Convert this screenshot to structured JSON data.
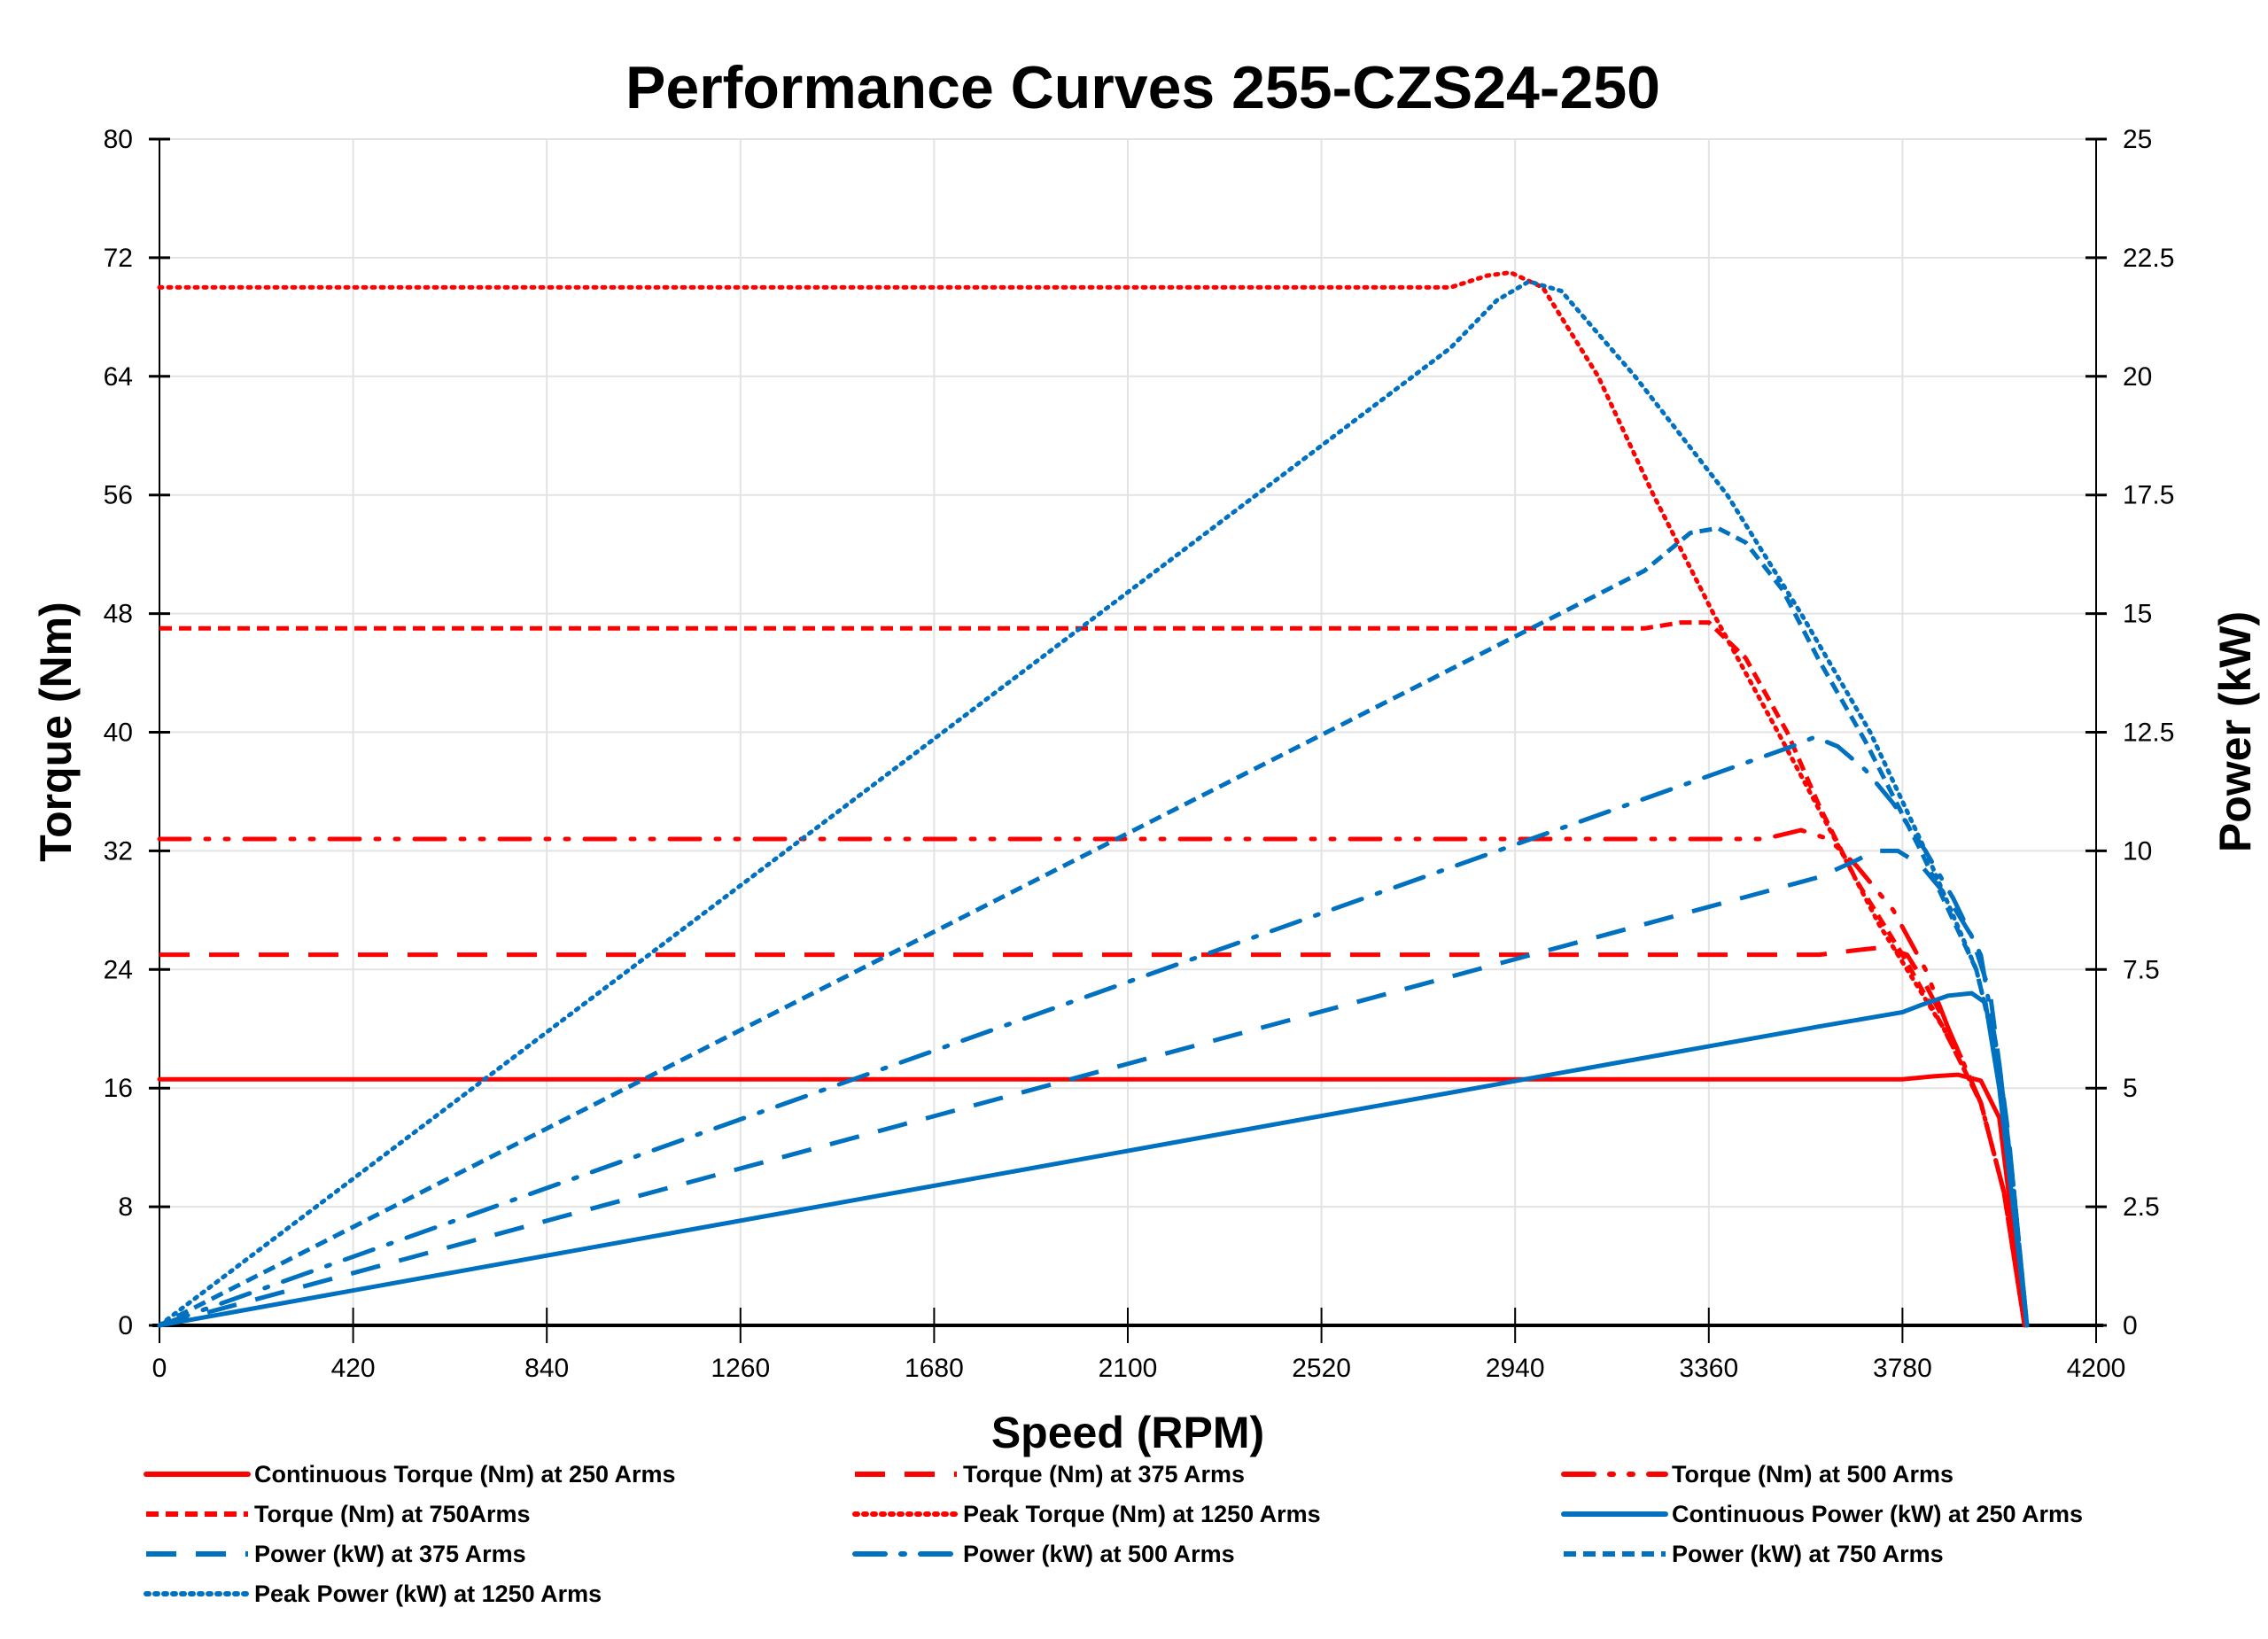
{
  "chart_data": {
    "type": "line",
    "title": "Performance Curves 255-CZS24-250",
    "xlabel": "Speed (RPM)",
    "ylabel": "Torque (Nm)",
    "y2label": "Power (kW)",
    "xlim": [
      0,
      4200
    ],
    "ylim": [
      0,
      80
    ],
    "y2lim": [
      0,
      25
    ],
    "xticks": [
      "0",
      "420",
      "840",
      "1260",
      "1680",
      "2100",
      "2520",
      "2940",
      "3360",
      "3780",
      "4200"
    ],
    "yticks": [
      "0",
      "8",
      "16",
      "24",
      "32",
      "40",
      "48",
      "56",
      "64",
      "72",
      "80"
    ],
    "y2ticks": [
      "0",
      "2.5",
      "5",
      "7.5",
      "10",
      "12.5",
      "15",
      "17.5",
      "20",
      "22.5",
      "25"
    ],
    "grid": true,
    "legend_position": "bottom",
    "colors": {
      "torque": "#ff0000",
      "power": "#0070c0"
    },
    "series": [
      {
        "name": "Continuous Torque (Nm) at 250 Arms",
        "axis": "left",
        "color": "#ff0000",
        "style": "solid",
        "x": [
          0,
          3000,
          3700,
          3780,
          3850,
          3900,
          3950,
          3990,
          4010,
          4030,
          4045
        ],
        "y": [
          16.6,
          16.6,
          16.6,
          16.6,
          16.8,
          16.9,
          16.5,
          14,
          9,
          3,
          0
        ]
      },
      {
        "name": "Torque (Nm) at 375 Arms",
        "axis": "left",
        "color": "#ff0000",
        "style": "longdash",
        "x": [
          0,
          3600,
          3680,
          3740,
          3790,
          3830,
          3880,
          3950,
          4000,
          4030,
          4045
        ],
        "y": [
          25,
          25,
          25.3,
          25.5,
          25,
          23,
          20,
          15,
          9,
          3,
          0
        ]
      },
      {
        "name": "Torque (Nm) at 500 Arms",
        "axis": "left",
        "color": "#ff0000",
        "style": "dashdotdot",
        "x": [
          0,
          3480,
          3560,
          3620,
          3680,
          3760,
          3830,
          3880,
          3950,
          4000,
          4030,
          4045
        ],
        "y": [
          32.8,
          32.8,
          33.4,
          32.8,
          31,
          28,
          24,
          20,
          15,
          9,
          3,
          0
        ]
      },
      {
        "name": "Torque (Nm) at 750Arms",
        "axis": "left",
        "color": "#ff0000",
        "style": "dash",
        "x": [
          0,
          3220,
          3300,
          3360,
          3440,
          3530,
          3600,
          3680,
          3780,
          3870,
          3950,
          4000,
          4030,
          4045
        ],
        "y": [
          47,
          47,
          47.4,
          47.4,
          45,
          40,
          35,
          30,
          25,
          20,
          15,
          9,
          3,
          0
        ]
      },
      {
        "name": "Peak Torque (Nm) at 1250  Arms",
        "axis": "left",
        "color": "#ff0000",
        "style": "dot",
        "x": [
          0,
          2800,
          2880,
          2930,
          3000,
          3120,
          3240,
          3370,
          3510,
          3630,
          3730,
          3870,
          3950,
          4000,
          4030,
          4045
        ],
        "y": [
          70,
          70,
          70.8,
          71,
          70,
          64,
          56,
          48,
          40,
          33,
          27,
          20,
          15,
          9,
          3,
          0
        ]
      },
      {
        "name": "Continuous Power (kW) at 250 Arms",
        "axis": "right",
        "color": "#0070c0",
        "style": "solid",
        "x": [
          0,
          2940,
          3600,
          3780,
          3820,
          3880,
          3930,
          3960,
          3990,
          4020,
          4050
        ],
        "y": [
          0,
          5.15,
          6.3,
          6.6,
          6.75,
          6.95,
          7.0,
          6.8,
          5,
          2.5,
          0
        ]
      },
      {
        "name": "Power (kW) at 375 Arms",
        "axis": "right",
        "color": "#0070c0",
        "style": "longdash",
        "x": [
          0,
          3600,
          3680,
          3720,
          3770,
          3820,
          3880,
          3930,
          3970,
          4010,
          4050
        ],
        "y": [
          0,
          9.45,
          9.8,
          10.0,
          10.0,
          9.7,
          9.0,
          8.2,
          7.0,
          4,
          0
        ]
      },
      {
        "name": "Power (kW) at 500 Arms",
        "axis": "right",
        "color": "#0070c0",
        "style": "dashdot",
        "x": [
          0,
          3540,
          3590,
          3640,
          3700,
          3760,
          3830,
          3890,
          3950,
          3990,
          4020,
          4050
        ],
        "y": [
          0,
          12.2,
          12.4,
          12.2,
          11.7,
          11.0,
          10.0,
          9.0,
          7.8,
          5.5,
          3,
          0
        ]
      },
      {
        "name": "Power (kW) at 750 Arms",
        "axis": "right",
        "color": "#0070c0",
        "style": "dash",
        "x": [
          0,
          3220,
          3320,
          3380,
          3440,
          3520,
          3600,
          3700,
          3820,
          3940,
          3990,
          4020,
          4050
        ],
        "y": [
          0,
          15.9,
          16.7,
          16.8,
          16.5,
          15.5,
          14.0,
          12.3,
          10.0,
          7.5,
          5.5,
          3,
          0
        ]
      },
      {
        "name": "Peak Power (kW) at 1250 Arms",
        "axis": "right",
        "color": "#0070c0",
        "style": "dot",
        "x": [
          0,
          2800,
          2900,
          2970,
          3040,
          3200,
          3400,
          3560,
          3710,
          3830,
          3940,
          3990,
          4020,
          4050
        ],
        "y": [
          0,
          20.6,
          21.6,
          22.0,
          21.8,
          20.0,
          17.5,
          15.0,
          12.5,
          10.0,
          7.5,
          5.5,
          3,
          0
        ]
      }
    ]
  }
}
